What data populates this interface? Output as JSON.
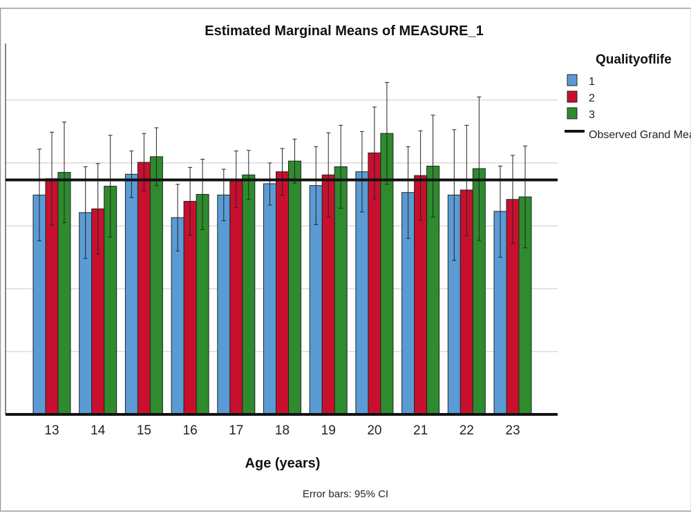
{
  "chart_data": {
    "type": "bar",
    "title": "Estimated Marginal Means of MEASURE_1",
    "xlabel": "Age (years)",
    "ylabel": "",
    "footnote": "Error bars: 95% CI",
    "categories": [
      "13",
      "14",
      "15",
      "16",
      "17",
      "18",
      "19",
      "20",
      "21",
      "22",
      "23"
    ],
    "ylim": [
      0,
      5.9
    ],
    "gridlines": [
      1,
      2,
      3,
      4,
      5
    ],
    "y_tick_labels_visible": false,
    "legend": {
      "title": "Qualityoflife",
      "position": "right",
      "reference_label": "Observed Grand Mean"
    },
    "grand_mean": 3.73,
    "series": [
      {
        "name": "1",
        "color": "#5b9bd5",
        "values": [
          3.49,
          3.21,
          3.82,
          3.13,
          3.49,
          3.67,
          3.64,
          3.86,
          3.53,
          3.49,
          3.23
        ],
        "ci_low": [
          2.76,
          2.48,
          3.45,
          2.6,
          3.08,
          3.33,
          3.02,
          3.22,
          2.8,
          2.45,
          2.5
        ],
        "ci_high": [
          4.22,
          3.94,
          4.19,
          3.66,
          3.9,
          4.0,
          4.26,
          4.5,
          4.26,
          4.53,
          3.95
        ]
      },
      {
        "name": "2",
        "color": "#c8102e",
        "values": [
          3.75,
          3.27,
          4.01,
          3.39,
          3.74,
          3.86,
          3.81,
          4.16,
          3.8,
          3.57,
          3.42
        ],
        "ci_low": [
          3.01,
          2.55,
          3.55,
          2.85,
          3.29,
          3.49,
          3.14,
          3.43,
          3.09,
          2.84,
          2.72
        ],
        "ci_high": [
          4.49,
          3.99,
          4.47,
          3.93,
          4.19,
          4.23,
          4.48,
          4.89,
          4.51,
          4.6,
          4.12
        ]
      },
      {
        "name": "3",
        "color": "#2e8b2e",
        "values": [
          3.85,
          3.63,
          4.1,
          3.5,
          3.81,
          4.03,
          3.94,
          4.47,
          3.95,
          3.91,
          3.46
        ],
        "ci_low": [
          3.05,
          2.82,
          3.64,
          2.94,
          3.42,
          3.68,
          3.28,
          3.66,
          3.14,
          2.77,
          2.65
        ],
        "ci_high": [
          4.65,
          4.44,
          4.56,
          4.06,
          4.2,
          4.38,
          4.6,
          5.28,
          4.76,
          5.05,
          4.27
        ]
      }
    ]
  }
}
